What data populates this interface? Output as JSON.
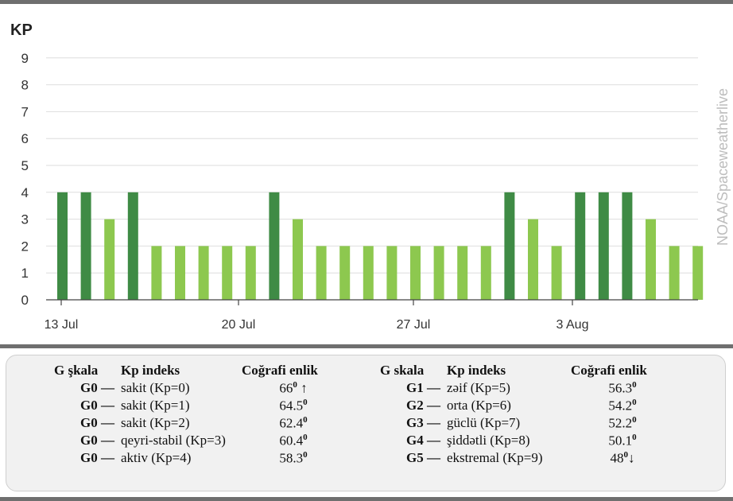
{
  "chart_data": {
    "type": "bar",
    "ylabel": "KP",
    "ylim": [
      0,
      9
    ],
    "yticks": [
      "0",
      "1",
      "2",
      "3",
      "4",
      "5",
      "6",
      "7",
      "8",
      "9"
    ],
    "xticks": [
      "13 Jul",
      "20 Jul",
      "27 Jul",
      "3 Aug"
    ],
    "watermark": "NOAA/Spaceweatherlive",
    "grid": true,
    "colors": {
      "active": "#3f8b45",
      "quiet": "#8dc84f"
    },
    "values": [
      4,
      4,
      3,
      4,
      2,
      2,
      2,
      2,
      2,
      4,
      3,
      2,
      2,
      2,
      2,
      2,
      2,
      2,
      2,
      4,
      3,
      2,
      4,
      4,
      4,
      3,
      2,
      2
    ]
  },
  "legend": {
    "left": {
      "headers": [
        "G şkala",
        "Kp indeks",
        "Coğrafi enlik"
      ],
      "rows": [
        {
          "level": "G0 —",
          "desc": "sakit (Kp=0)",
          "lat": "66",
          "suffix": " ↑"
        },
        {
          "level": "G0 —",
          "desc": "sakit (Kp=1)",
          "lat": "64.5",
          "suffix": ""
        },
        {
          "level": "G0 —",
          "desc": "sakit (Kp=2)",
          "lat": "62.4",
          "suffix": ""
        },
        {
          "level": "G0 —",
          "desc": "qeyri-stabil (Kp=3)",
          "lat": "60.4",
          "suffix": ""
        },
        {
          "level": "G0 —",
          "desc": "aktiv (Kp=4)",
          "lat": "58.3",
          "suffix": ""
        }
      ]
    },
    "right": {
      "headers": [
        "G skala",
        "Kp indeks",
        "Coğrafi enlik"
      ],
      "rows": [
        {
          "level": "G1 —",
          "desc": "zəif (Kp=5)",
          "lat": "56.3",
          "suffix": ""
        },
        {
          "level": "G2 —",
          "desc": "orta (Kp=6)",
          "lat": "54.2",
          "suffix": ""
        },
        {
          "level": "G3 —",
          "desc": "güclü (Kp=7)",
          "lat": "52.2",
          "suffix": ""
        },
        {
          "level": "G4 —",
          "desc": "şiddətli (Kp=8)",
          "lat": "50.1",
          "suffix": ""
        },
        {
          "level": "G5 —",
          "desc": "ekstremal (Kp=9)",
          "lat": "48",
          "suffix": "↓"
        }
      ]
    },
    "degree_mark": "0"
  }
}
